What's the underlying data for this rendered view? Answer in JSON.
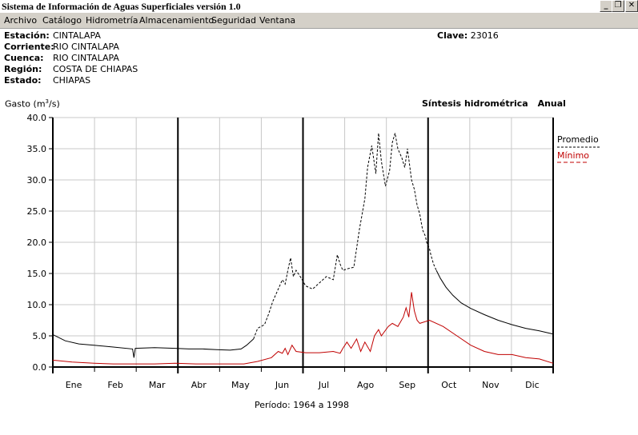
{
  "window": {
    "title": "Sistema de Información de Aguas Superficiales  versión 1.0",
    "minimize_glyph": "_",
    "restore_glyph": "❐",
    "close_glyph": "✕"
  },
  "menu": [
    "Archivo",
    "Catálogo",
    "Hidrometría",
    "Almacenamiento",
    "Seguridad",
    "Ventana"
  ],
  "station": {
    "rows": [
      {
        "label": "Estación:",
        "value": "CINTALAPA"
      },
      {
        "label": "Corriente:",
        "value": "RIO CINTALAPA"
      },
      {
        "label": "Cuenca:",
        "value": "RIO CINTALAPA"
      },
      {
        "label": "Región:",
        "value": "COSTA DE CHIAPAS"
      },
      {
        "label": "Estado:",
        "value": "CHIAPAS"
      }
    ],
    "clave_label": "Clave:",
    "clave_value": "23016"
  },
  "chart_header": {
    "ylabel_prefix": "Gasto (m",
    "ylabel_sup": "3",
    "ylabel_suffix": "/s)",
    "synthesis": "Síntesis hidrométrica",
    "mode": "Anual"
  },
  "period_text": "Período:  1964 a 1998",
  "colors": {
    "promedio": "#000000",
    "minimo": "#c00000",
    "grid": "#c8c8c8",
    "menu_bg": "#d4d0c8"
  },
  "chart_data": {
    "type": "line",
    "x_unit": "day of year",
    "xlim": [
      1,
      365
    ],
    "ylim": [
      0,
      40
    ],
    "yticks": [
      "0.0",
      "5.0",
      "10.0",
      "15.0",
      "20.0",
      "25.0",
      "30.0",
      "35.0",
      "40.0"
    ],
    "months": [
      "Ene",
      "Feb",
      "Mar",
      "Abr",
      "May",
      "Jun",
      "Jul",
      "Ago",
      "Sep",
      "Oct",
      "Nov",
      "Dic"
    ],
    "grid": true,
    "legend_position": "right",
    "series": [
      {
        "name": "Promedio",
        "x": [
          1,
          10,
          20,
          31,
          45,
          59,
          60,
          61,
          75,
          90,
          100,
          110,
          120,
          130,
          138,
          142,
          147,
          150,
          155,
          158,
          161,
          165,
          168,
          170,
          172,
          174,
          176,
          178,
          181,
          185,
          190,
          195,
          200,
          205,
          208,
          210,
          212,
          216,
          220,
          224,
          228,
          230,
          233,
          236,
          238,
          240,
          243,
          246,
          248,
          250,
          252,
          255,
          257,
          259,
          262,
          264,
          266,
          268,
          270,
          272,
          273,
          275,
          276,
          278,
          280,
          283,
          287,
          292,
          298,
          305,
          315,
          325,
          335,
          345,
          355,
          365
        ],
        "values": [
          5.2,
          4.2,
          3.7,
          3.5,
          3.2,
          2.9,
          1.5,
          3.0,
          3.1,
          3.0,
          2.9,
          2.9,
          2.8,
          2.7,
          2.9,
          3.5,
          4.5,
          6.2,
          6.8,
          8.5,
          10.5,
          12.5,
          14.0,
          13.3,
          15.5,
          17.5,
          14.5,
          15.5,
          14.5,
          13.0,
          12.5,
          13.5,
          14.5,
          14.0,
          18.0,
          16.5,
          15.5,
          15.8,
          16.0,
          22.0,
          27.0,
          32.0,
          35.5,
          31.0,
          37.5,
          33.0,
          29.0,
          31.5,
          36.0,
          37.5,
          35.0,
          33.5,
          32.0,
          35.0,
          30.0,
          28.5,
          26.0,
          24.5,
          22.0,
          21.0,
          20.0,
          19.0,
          18.0,
          16.5,
          15.5,
          14.2,
          12.8,
          11.5,
          10.3,
          9.4,
          8.4,
          7.5,
          6.8,
          6.2,
          5.8,
          5.3
        ]
      },
      {
        "name": "Mínimo",
        "x": [
          1,
          15,
          31,
          45,
          59,
          75,
          90,
          105,
          120,
          140,
          150,
          160,
          165,
          168,
          170,
          172,
          175,
          178,
          185,
          195,
          205,
          210,
          212,
          215,
          218,
          222,
          225,
          228,
          232,
          235,
          238,
          240,
          245,
          248,
          252,
          256,
          258,
          260,
          262,
          264,
          266,
          268,
          275,
          285,
          295,
          305,
          315,
          325,
          335,
          345,
          355,
          365
        ],
        "values": [
          1.1,
          0.8,
          0.6,
          0.5,
          0.5,
          0.5,
          0.6,
          0.5,
          0.5,
          0.5,
          0.9,
          1.5,
          2.5,
          2.2,
          3.0,
          2.0,
          3.5,
          2.5,
          2.3,
          2.3,
          2.5,
          2.2,
          3.0,
          4.0,
          3.0,
          4.5,
          2.5,
          4.0,
          2.5,
          5.0,
          6.0,
          5.0,
          6.5,
          7.0,
          6.5,
          8.0,
          9.5,
          8.0,
          12.0,
          9.0,
          7.5,
          7.0,
          7.5,
          6.5,
          5.0,
          3.5,
          2.5,
          2.0,
          2.0,
          1.5,
          1.3,
          0.6
        ]
      }
    ]
  }
}
